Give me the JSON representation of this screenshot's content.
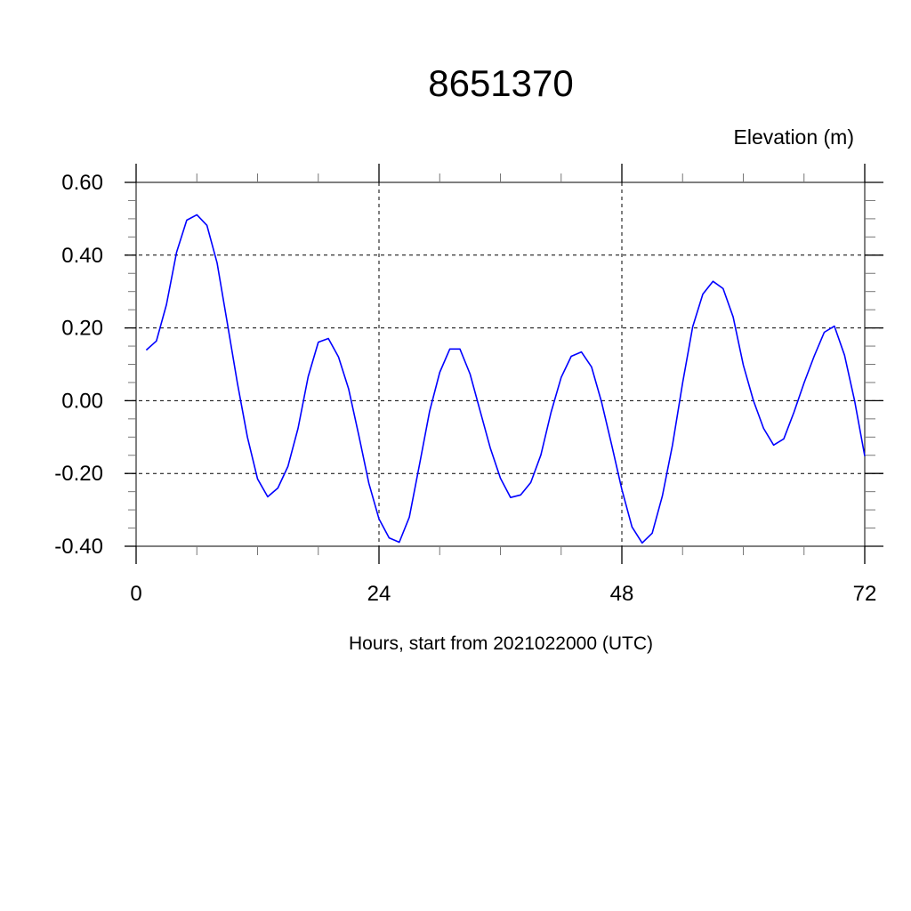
{
  "chart_data": {
    "type": "line",
    "title": "8651370",
    "ylabel": "Elevation (m)",
    "xlabel": "Hours, start from 2021022000 (UTC)",
    "xlim": [
      0,
      72
    ],
    "ylim": [
      -0.4,
      0.6
    ],
    "xticks": [
      0,
      24,
      48,
      72
    ],
    "xtick_labels": [
      "0",
      "24",
      "48",
      "72"
    ],
    "yticks": [
      -0.4,
      -0.2,
      0.0,
      0.2,
      0.4,
      0.6
    ],
    "ytick_labels": [
      "-0.40",
      "-0.20",
      "0.00",
      "0.20",
      "0.40",
      "0.60"
    ],
    "grid": true,
    "line_color": "#0000ff",
    "series": [
      {
        "x": [
          1,
          2,
          3,
          4,
          5,
          6,
          7,
          8,
          9,
          10,
          11,
          12,
          13,
          14,
          15,
          16,
          17,
          18,
          19,
          20,
          21,
          22,
          23,
          24,
          25,
          26,
          27,
          28,
          29,
          30,
          31,
          32,
          33,
          34,
          35,
          36,
          37,
          38,
          39,
          40,
          41,
          42,
          43,
          44,
          45,
          46,
          47,
          48,
          49,
          50,
          51,
          52,
          53,
          54,
          55,
          56,
          57,
          58,
          59,
          60,
          61,
          62,
          63,
          64,
          65,
          66,
          67,
          68,
          69,
          70,
          71,
          72
        ],
        "y": [
          0.139,
          0.164,
          0.264,
          0.408,
          0.496,
          0.511,
          0.482,
          0.379,
          0.215,
          0.049,
          -0.1,
          -0.215,
          -0.264,
          -0.24,
          -0.181,
          -0.076,
          0.066,
          0.161,
          0.171,
          0.12,
          0.032,
          -0.095,
          -0.227,
          -0.325,
          -0.377,
          -0.389,
          -0.32,
          -0.176,
          -0.029,
          0.078,
          0.142,
          0.142,
          0.073,
          -0.029,
          -0.13,
          -0.213,
          -0.266,
          -0.259,
          -0.225,
          -0.149,
          -0.032,
          0.064,
          0.122,
          0.134,
          0.093,
          -0.005,
          -0.122,
          -0.244,
          -0.347,
          -0.391,
          -0.364,
          -0.262,
          -0.122,
          0.049,
          0.203,
          0.293,
          0.328,
          0.308,
          0.23,
          0.098,
          0.0,
          -0.076,
          -0.122,
          -0.105,
          -0.032,
          0.049,
          0.122,
          0.188,
          0.205,
          0.125,
          0.0,
          -0.152
        ]
      }
    ]
  }
}
